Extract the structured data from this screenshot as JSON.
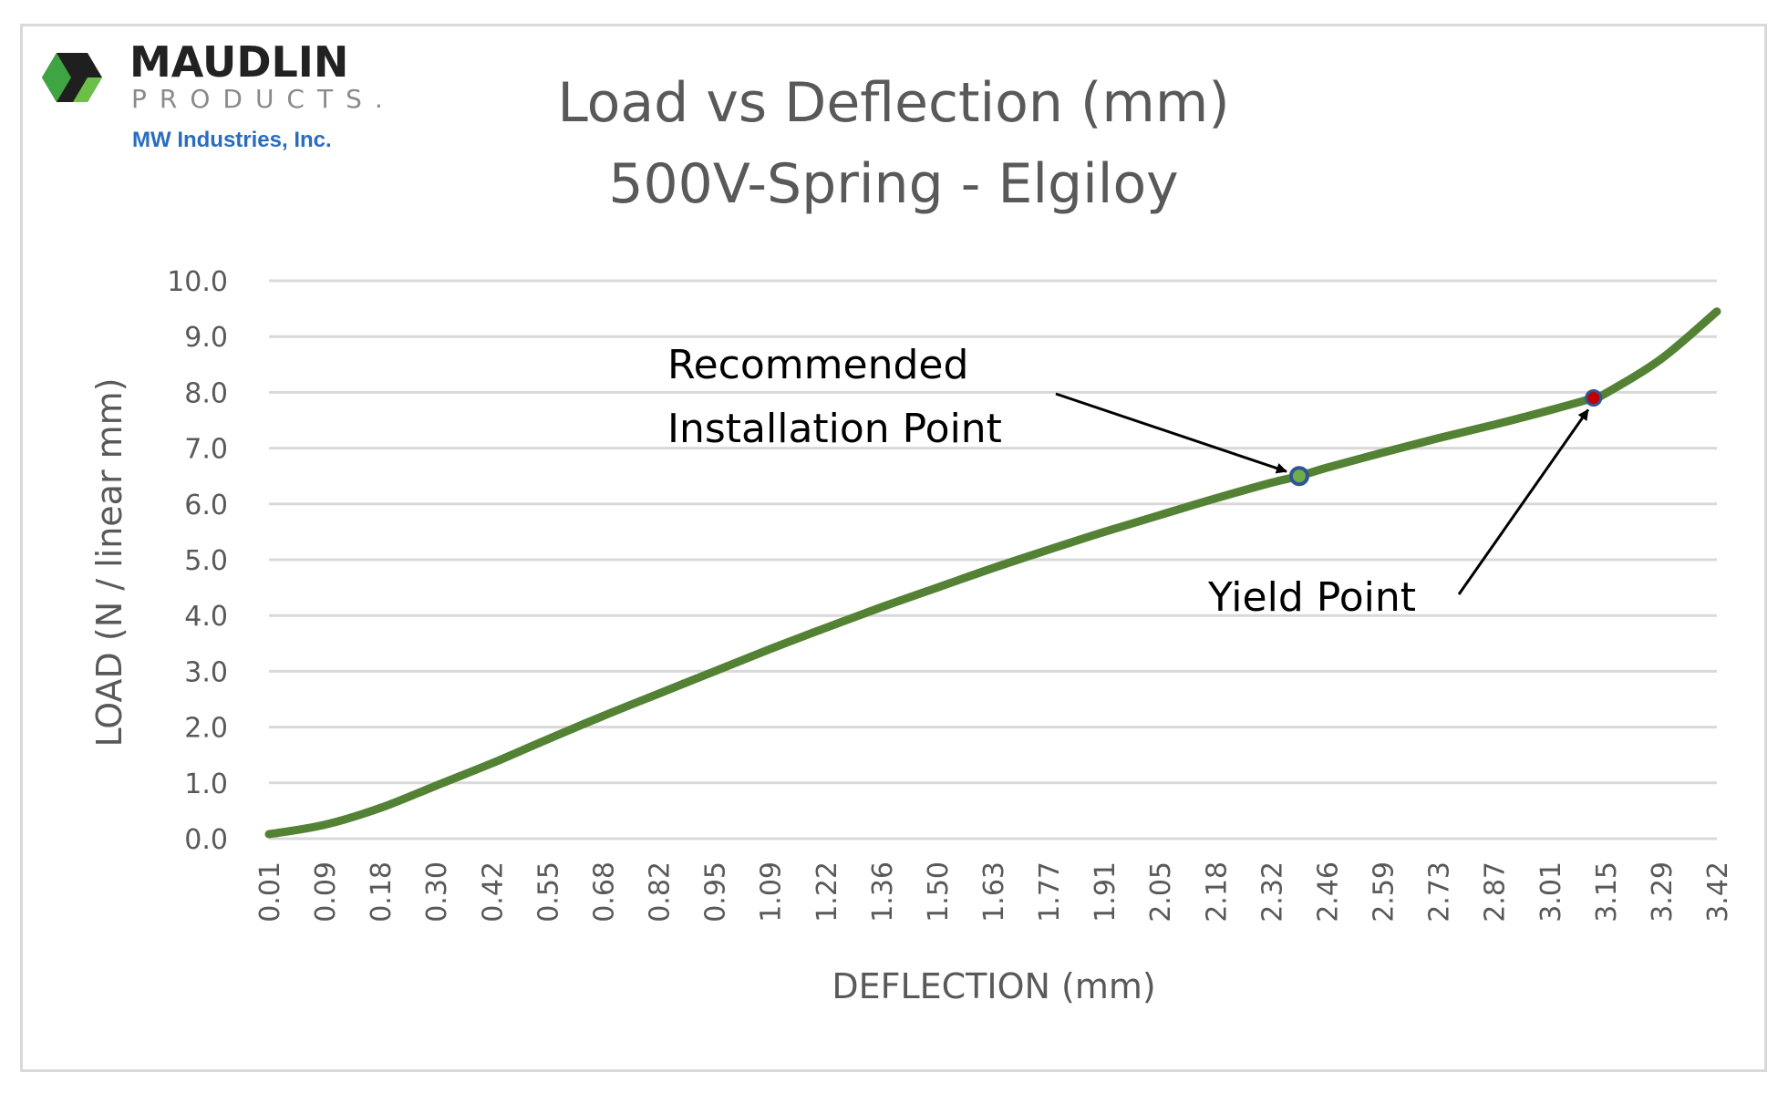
{
  "logo": {
    "name": "MAUDLIN",
    "sub": "PRODUCTS.",
    "company": "MW Industries, Inc."
  },
  "chart_data": {
    "type": "line",
    "title": "Load vs Deflection (mm)",
    "subtitle": "500V-Spring - Elgiloy",
    "xlabel": "DEFLECTION (mm)",
    "ylabel": "LOAD (N / linear mm)",
    "ylim": [
      0,
      10
    ],
    "yticks": [
      "0.0",
      "1.0",
      "2.0",
      "3.0",
      "4.0",
      "5.0",
      "6.0",
      "7.0",
      "8.0",
      "9.0",
      "10.0"
    ],
    "xticks": [
      "0.01",
      "0.09",
      "0.18",
      "0.30",
      "0.42",
      "0.55",
      "0.68",
      "0.82",
      "0.95",
      "1.09",
      "1.22",
      "1.36",
      "1.50",
      "1.63",
      "1.77",
      "1.91",
      "2.05",
      "2.18",
      "2.32",
      "2.46",
      "2.59",
      "2.73",
      "2.87",
      "3.01",
      "3.15",
      "3.29",
      "3.42"
    ],
    "grid": "horizontal",
    "line_color": "#548235",
    "series": [
      {
        "x": [
          0.01,
          0.09,
          0.18,
          0.3,
          0.42,
          0.55,
          0.68,
          0.82,
          0.95,
          1.09,
          1.22,
          1.36,
          1.5,
          1.63,
          1.77,
          1.91,
          2.05,
          2.18,
          2.32,
          2.39,
          2.46,
          2.59,
          2.73,
          2.87,
          3.01,
          3.12,
          3.15,
          3.29,
          3.42
        ],
        "y": [
          0.08,
          0.25,
          0.55,
          0.95,
          1.35,
          1.78,
          2.2,
          2.6,
          3.0,
          3.4,
          3.78,
          4.15,
          4.5,
          4.85,
          5.18,
          5.5,
          5.8,
          6.1,
          6.38,
          6.5,
          6.65,
          6.92,
          7.18,
          7.42,
          7.68,
          7.9,
          7.98,
          8.6,
          9.45
        ]
      }
    ],
    "annotations": [
      {
        "label_line1": "Recommended",
        "label_line2": "Installation Point",
        "x": 2.39,
        "y": 6.5,
        "marker_color": "#2f5597"
      },
      {
        "label": "Yield Point",
        "x": 3.12,
        "y": 7.9,
        "marker_color": "#c00000"
      }
    ]
  }
}
